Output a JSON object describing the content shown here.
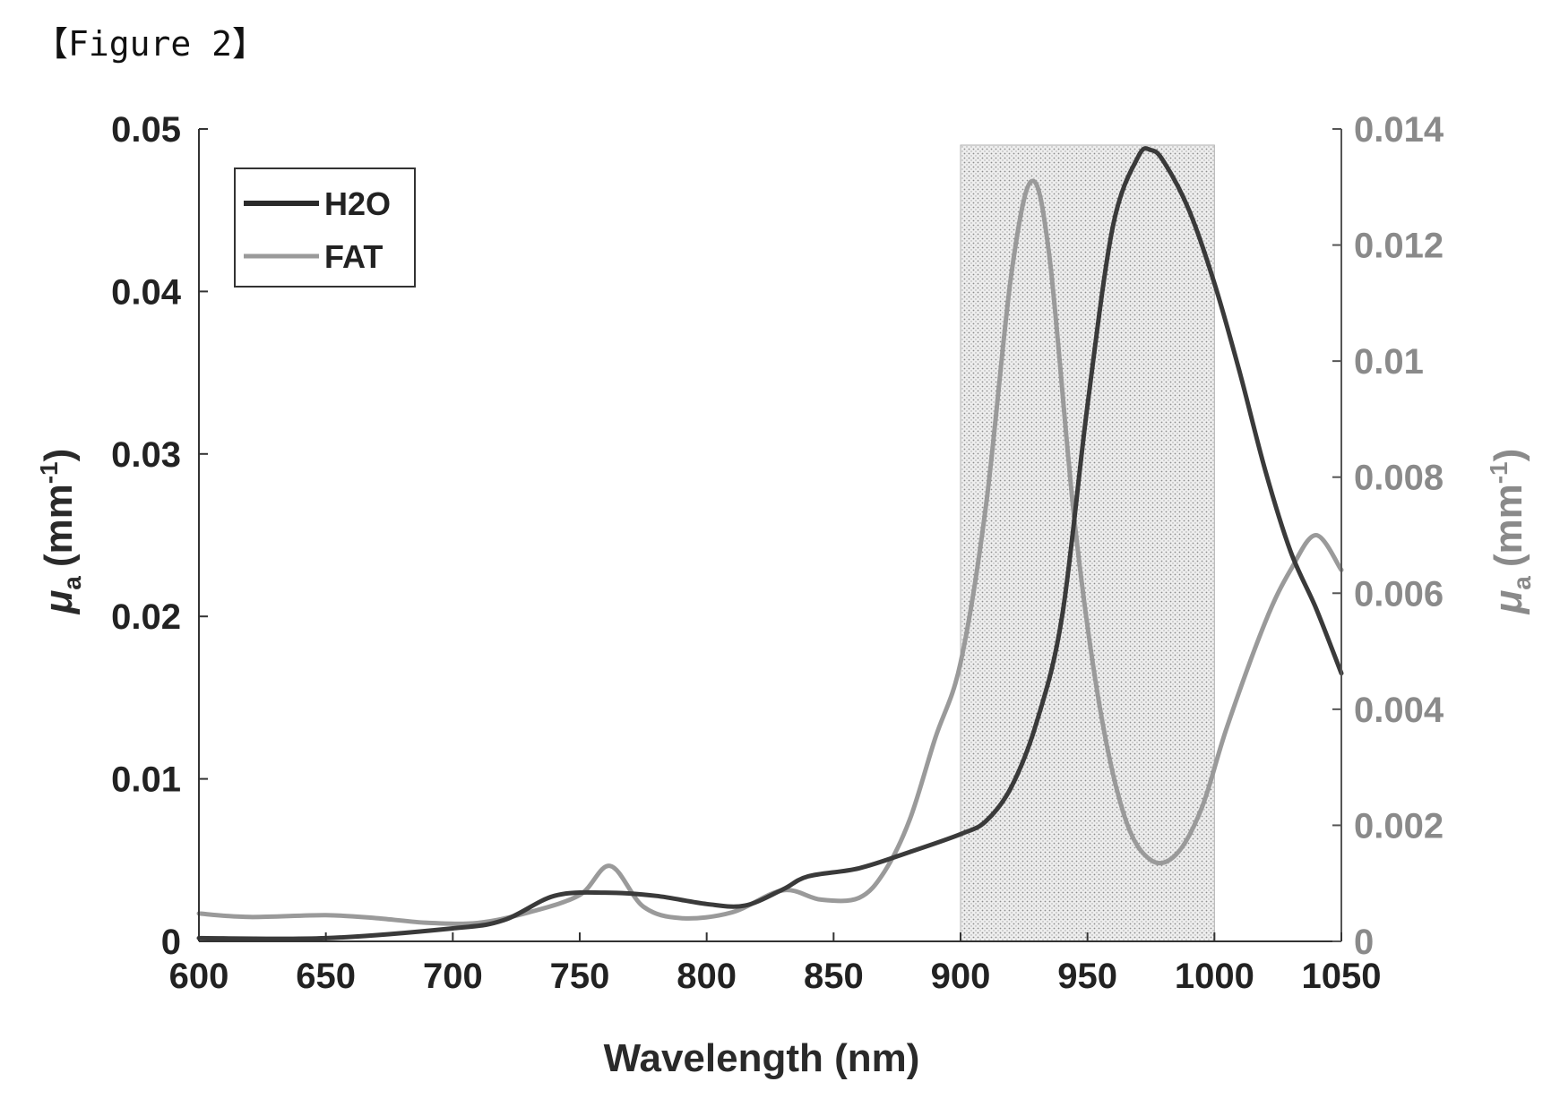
{
  "caption": "【Figure 2】",
  "chart_data": {
    "type": "line",
    "title": "",
    "xlabel": "Wavelength (nm)",
    "ylabel_left": {
      "symbol": "μ",
      "sub": "a",
      "unit": "(mm",
      "sup": "-1",
      "close": ")"
    },
    "ylabel_right": {
      "symbol": "μ",
      "sub": "a",
      "unit": "(mm",
      "sup": "-1",
      "close": ")"
    },
    "xlim": [
      600,
      1050
    ],
    "ylim_left": [
      0,
      0.05
    ],
    "ylim_right": [
      0,
      0.014
    ],
    "xticks": [
      "600",
      "650",
      "700",
      "750",
      "800",
      "850",
      "900",
      "950",
      "1000",
      "1050"
    ],
    "yticks_left": [
      "0",
      "0.01",
      "0.02",
      "0.03",
      "0.04",
      "0.05"
    ],
    "yticks_right": [
      "0",
      "0.002",
      "0.004",
      "0.006",
      "0.008",
      "0.01",
      "0.012",
      "0.014"
    ],
    "shaded_region": {
      "x_start": 900,
      "x_end": 1000
    },
    "legend_position": "top-left",
    "series": [
      {
        "name": "H2O",
        "axis": "left",
        "color": "#3a3a3a",
        "x": [
          600,
          650,
          700,
          720,
          740,
          760,
          780,
          800,
          815,
          830,
          840,
          860,
          880,
          900,
          910,
          920,
          930,
          940,
          950,
          960,
          970,
          975,
          980,
          990,
          1000,
          1010,
          1020,
          1030,
          1040,
          1050
        ],
        "y": [
          0.0002,
          0.0002,
          0.0008,
          0.0013,
          0.0028,
          0.003,
          0.0028,
          0.0023,
          0.0022,
          0.0032,
          0.004,
          0.0045,
          0.0055,
          0.0066,
          0.0074,
          0.0095,
          0.0135,
          0.02,
          0.033,
          0.044,
          0.0483,
          0.0487,
          0.048,
          0.045,
          0.0405,
          0.035,
          0.029,
          0.024,
          0.0205,
          0.0165
        ]
      },
      {
        "name": "FAT",
        "axis": "right",
        "color": "#9a9a9a",
        "x": [
          600,
          620,
          650,
          670,
          690,
          710,
          730,
          750,
          762,
          775,
          790,
          810,
          830,
          845,
          860,
          870,
          880,
          890,
          900,
          910,
          920,
          928,
          935,
          945,
          955,
          965,
          975,
          985,
          995,
          1005,
          1020,
          1030,
          1040,
          1050
        ],
        "y": [
          0.00048,
          0.00042,
          0.00045,
          0.0004,
          0.00032,
          0.00032,
          0.0005,
          0.0008,
          0.0013,
          0.0006,
          0.0004,
          0.0005,
          0.00088,
          0.00072,
          0.00075,
          0.0012,
          0.0021,
          0.0035,
          0.0048,
          0.0075,
          0.0115,
          0.0131,
          0.0118,
          0.0072,
          0.004,
          0.0021,
          0.0014,
          0.0015,
          0.0023,
          0.0037,
          0.0055,
          0.0064,
          0.007,
          0.0064
        ]
      }
    ]
  }
}
